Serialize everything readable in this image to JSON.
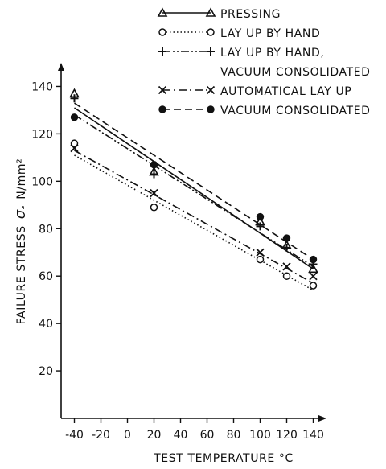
{
  "chart_data": {
    "type": "line",
    "title": "",
    "xlabel": "TEST TEMPERATURE °C",
    "ylabel": "FAILURE STRESS σf  N/mm²",
    "ylabel_main": "FAILURE STRESS",
    "ylabel_symbol": "σ",
    "ylabel_subscript": "f",
    "ylabel_unit": "N/mm²",
    "xlim": [
      -50,
      150
    ],
    "ylim": [
      0,
      150
    ],
    "xticks": [
      -40,
      -20,
      0,
      20,
      40,
      60,
      80,
      100,
      120,
      140
    ],
    "xtick_labels": [
      "-40",
      "-20",
      "0",
      "20",
      "40",
      "60",
      "80",
      "100",
      "120",
      "140"
    ],
    "yticks": [
      20,
      40,
      60,
      80,
      100,
      120,
      140
    ],
    "ytick_labels": [
      "20",
      "40",
      "60",
      "80",
      "100",
      "120",
      "140"
    ],
    "grid": false,
    "legend_position": "top",
    "series": [
      {
        "name": "PRESSING",
        "name_lines": [
          "PRESSING"
        ],
        "marker": "triangle",
        "dash": "solid",
        "x": [
          -40,
          20,
          100,
          120,
          140
        ],
        "y": [
          137,
          104,
          83,
          73,
          63
        ],
        "fit": [
          [
            -40,
            131
          ],
          [
            140,
            63
          ]
        ]
      },
      {
        "name": "LAY UP BY HAND",
        "name_lines": [
          "LAY UP BY HAND"
        ],
        "marker": "open-circle",
        "dash": "dotted",
        "x": [
          -40,
          20,
          100,
          120,
          140
        ],
        "y": [
          116,
          89,
          67,
          60,
          56
        ],
        "fit": [
          [
            -40,
            111
          ],
          [
            140,
            54
          ]
        ]
      },
      {
        "name": "LAY UP BY HAND, VACUUM CONSOLIDATED",
        "name_lines": [
          "LAY UP BY HAND,",
          "VACUUM CONSOLIDATED"
        ],
        "marker": "plus",
        "dash": "dash-dot-dot",
        "x": [
          -40,
          20,
          100,
          120,
          140
        ],
        "y": [
          135,
          103,
          81,
          72,
          65
        ],
        "fit": [
          [
            -40,
            128
          ],
          [
            140,
            64
          ]
        ]
      },
      {
        "name": "AUTOMATICAL LAY UP",
        "name_lines": [
          "AUTOMATICAL LAY UP"
        ],
        "marker": "cross",
        "dash": "dash-dot",
        "x": [
          -40,
          20,
          100,
          120,
          140
        ],
        "y": [
          114,
          95,
          70,
          64,
          60
        ],
        "fit": [
          [
            -40,
            113
          ],
          [
            140,
            57
          ]
        ]
      },
      {
        "name": "VACUUM CONSOLIDATED",
        "name_lines": [
          "VACUUM CONSOLIDATED"
        ],
        "marker": "filled-circle",
        "dash": "dashed",
        "x": [
          -40,
          20,
          100,
          120,
          140
        ],
        "y": [
          127,
          107,
          85,
          76,
          67
        ],
        "fit": [
          [
            -40,
            133
          ],
          [
            140,
            67
          ]
        ]
      }
    ]
  }
}
